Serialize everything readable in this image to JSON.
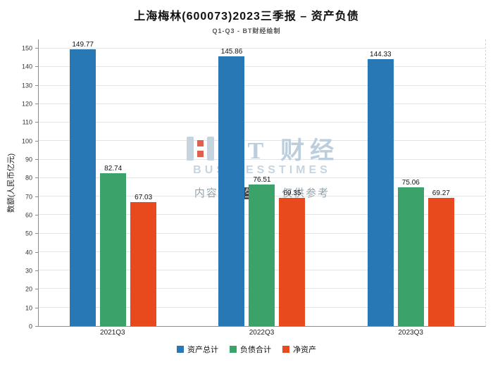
{
  "title": "上海梅林(600073)2023三季报 – 资产负债",
  "subtitle": "Q1-Q3 - BT财经绘制",
  "watermark": {
    "brand": "BT 财经",
    "brand_sub": "BUSINESSTIMES",
    "disclaimer_pre": "内容由",
    "disclaimer_hl": "AI生成",
    "disclaimer_post": "，仅供参考"
  },
  "chart_data": {
    "type": "bar",
    "title": "上海梅林(600073)2023三季报 – 资产负债",
    "subtitle": "Q1-Q3 - BT财经绘制",
    "categories": [
      "2021Q3",
      "2022Q3",
      "2023Q3"
    ],
    "series": [
      {
        "name": "资产总计",
        "color": "#2878B5",
        "values": [
          149.77,
          145.86,
          144.33
        ]
      },
      {
        "name": "负债合计",
        "color": "#3BA26A",
        "values": [
          82.74,
          76.51,
          75.06
        ]
      },
      {
        "name": "净资产",
        "color": "#E8491D",
        "values": [
          67.03,
          69.35,
          69.27
        ]
      }
    ],
    "xlabel": "",
    "ylabel": "数额(人民币亿元)",
    "ylim": [
      0,
      150
    ],
    "ytick_step": 10,
    "scale_max": 155,
    "grid": true,
    "legend_position": "bottom"
  }
}
